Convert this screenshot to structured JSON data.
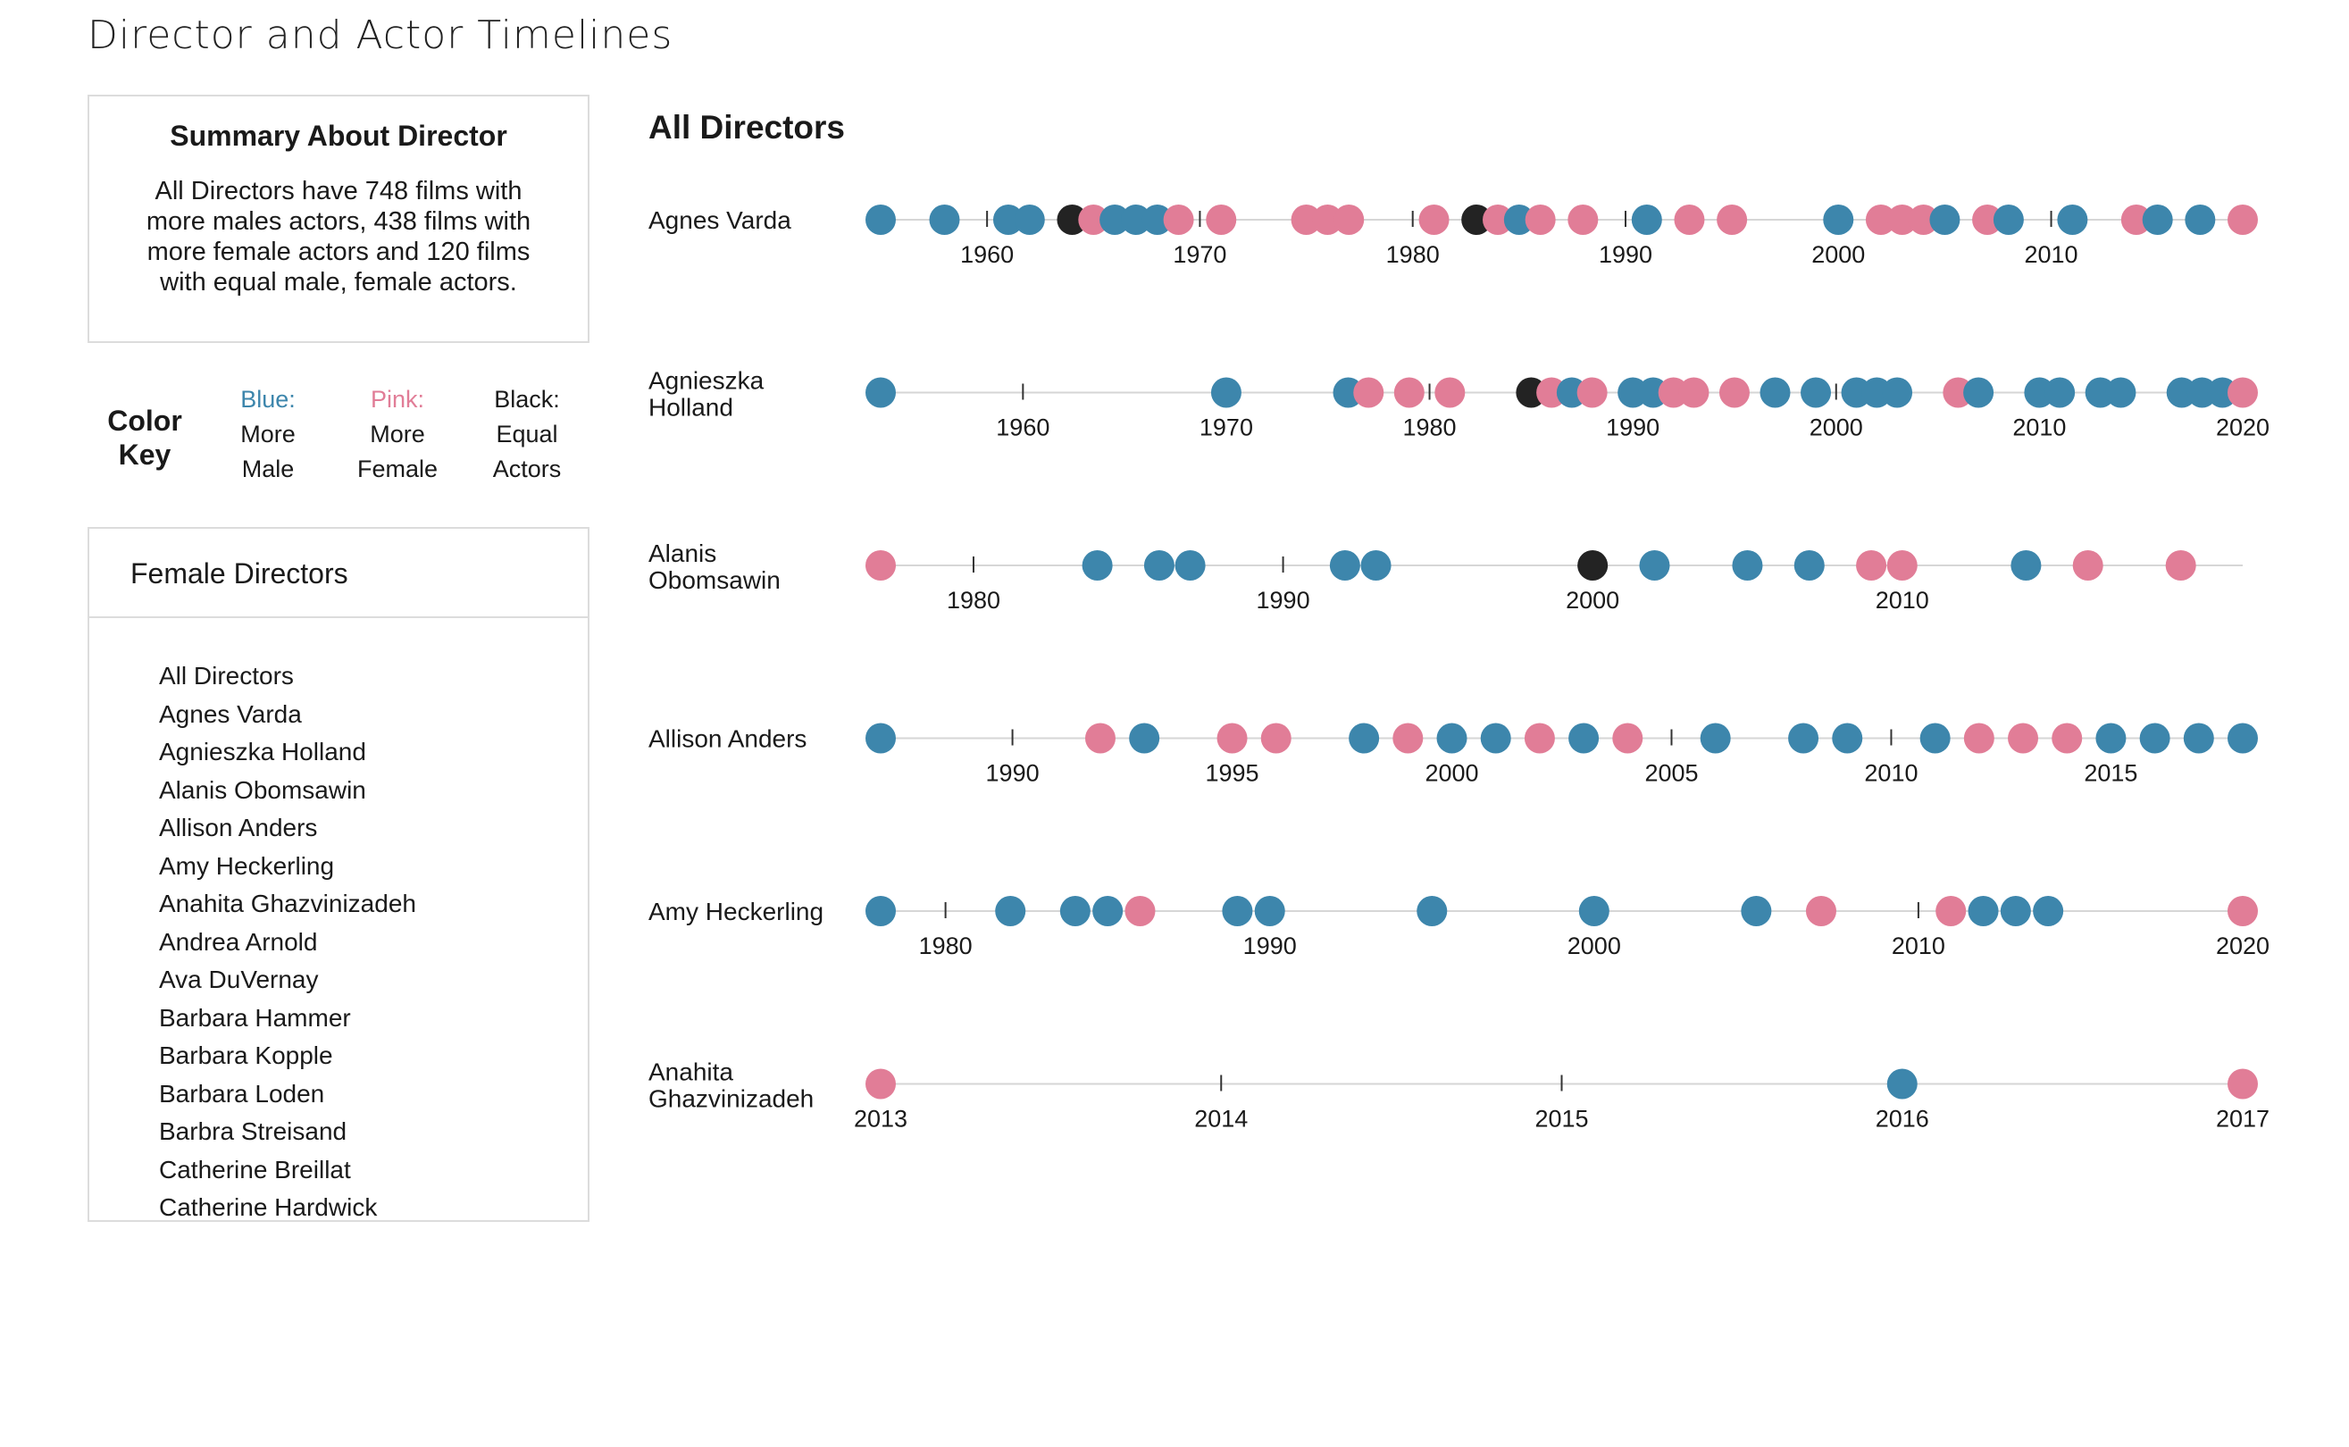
{
  "page_title": "Director and Actor Timelines",
  "summary": {
    "title": "Summary About Director",
    "text": "All Directors have 748 films with more males actors, 438 films with more female actors and 120 films with equal male, female actors."
  },
  "color_key": {
    "title": "Color Key",
    "blue": {
      "head": "Blue:",
      "line1": "More",
      "line2": "Male"
    },
    "pink": {
      "head": "Pink:",
      "line1": "More",
      "line2": "Female"
    },
    "black": {
      "head": "Black:",
      "line1": "Equal",
      "line2": "Actors"
    }
  },
  "colors": {
    "male": "#3d86ac",
    "female": "#e17d97",
    "equal": "#232323",
    "axis": "#d6d6d6",
    "tick": "#333333"
  },
  "director_list": {
    "header": "Female Directors",
    "items": [
      "All Directors",
      "Agnes Varda",
      "Agnieszka Holland",
      "Alanis Obomsawin",
      "Allison Anders",
      "Amy Heckerling",
      "Anahita Ghazvinizadeh",
      "Andrea Arnold",
      "Ava DuVernay",
      "Barbara Hammer",
      "Barbara Kopple",
      "Barbara Loden",
      "Barbra Streisand",
      "Catherine Breillat",
      "Catherine Hardwick"
    ]
  },
  "chart_title": "All Directors",
  "chart_data": {
    "type": "scatter",
    "title": "All Directors",
    "category_codes": {
      "M": "More Male",
      "F": "More Female",
      "E": "Equal Actors"
    },
    "timelines": [
      {
        "director": [
          "Agnes Varda"
        ],
        "domain": [
          1955,
          2019
        ],
        "ticks": [
          1960,
          1970,
          1980,
          1990,
          2000,
          2010
        ],
        "points": [
          [
            1955,
            "M"
          ],
          [
            1958,
            "M"
          ],
          [
            1961,
            "M"
          ],
          [
            1962,
            "M"
          ],
          [
            1964,
            "E"
          ],
          [
            1965,
            "F"
          ],
          [
            1966,
            "M"
          ],
          [
            1967,
            "M"
          ],
          [
            1968,
            "M"
          ],
          [
            1969,
            "F"
          ],
          [
            1971,
            "F"
          ],
          [
            1975,
            "F"
          ],
          [
            1976,
            "F"
          ],
          [
            1977,
            "F"
          ],
          [
            1981,
            "F"
          ],
          [
            1983,
            "E"
          ],
          [
            1984,
            "F"
          ],
          [
            1985,
            "M"
          ],
          [
            1986,
            "F"
          ],
          [
            1988,
            "F"
          ],
          [
            1991,
            "M"
          ],
          [
            1993,
            "F"
          ],
          [
            1995,
            "F"
          ],
          [
            2000,
            "M"
          ],
          [
            2002,
            "F"
          ],
          [
            2003,
            "F"
          ],
          [
            2004,
            "F"
          ],
          [
            2005,
            "M"
          ],
          [
            2007,
            "F"
          ],
          [
            2008,
            "M"
          ],
          [
            2011,
            "M"
          ],
          [
            2014,
            "F"
          ],
          [
            2015,
            "M"
          ],
          [
            2017,
            "M"
          ],
          [
            2019,
            "F"
          ]
        ]
      },
      {
        "director": [
          "Agnieszka",
          "Holland"
        ],
        "domain": [
          1953,
          2020
        ],
        "ticks": [
          1960,
          1970,
          1980,
          1990,
          2000,
          2010,
          2020
        ],
        "points": [
          [
            1953,
            "M"
          ],
          [
            1970,
            "M"
          ],
          [
            1976,
            "M"
          ],
          [
            1977,
            "F"
          ],
          [
            1979,
            "F"
          ],
          [
            1981,
            "F"
          ],
          [
            1985,
            "E"
          ],
          [
            1986,
            "F"
          ],
          [
            1987,
            "M"
          ],
          [
            1988,
            "F"
          ],
          [
            1990,
            "M"
          ],
          [
            1991,
            "M"
          ],
          [
            1992,
            "F"
          ],
          [
            1993,
            "F"
          ],
          [
            1995,
            "F"
          ],
          [
            1997,
            "M"
          ],
          [
            1999,
            "M"
          ],
          [
            2001,
            "M"
          ],
          [
            2002,
            "M"
          ],
          [
            2003,
            "M"
          ],
          [
            2006,
            "F"
          ],
          [
            2007,
            "M"
          ],
          [
            2010,
            "M"
          ],
          [
            2011,
            "M"
          ],
          [
            2013,
            "M"
          ],
          [
            2014,
            "M"
          ],
          [
            2017,
            "M"
          ],
          [
            2018,
            "M"
          ],
          [
            2019,
            "M"
          ],
          [
            2020,
            "F"
          ]
        ]
      },
      {
        "director": [
          "Alanis",
          "Obomsawin"
        ],
        "domain": [
          1977,
          2021
        ],
        "ticks": [
          1980,
          1990,
          2000,
          2010
        ],
        "points": [
          [
            1977,
            "F"
          ],
          [
            1984,
            "M"
          ],
          [
            1986,
            "M"
          ],
          [
            1987,
            "M"
          ],
          [
            1992,
            "M"
          ],
          [
            1993,
            "M"
          ],
          [
            2000,
            "E"
          ],
          [
            2002,
            "M"
          ],
          [
            2005,
            "M"
          ],
          [
            2007,
            "M"
          ],
          [
            2009,
            "F"
          ],
          [
            2010,
            "F"
          ],
          [
            2014,
            "M"
          ],
          [
            2016,
            "F"
          ],
          [
            2019,
            "F"
          ]
        ]
      },
      {
        "director": [
          "Allison Anders"
        ],
        "domain": [
          1987,
          2018
        ],
        "ticks": [
          1990,
          1995,
          2000,
          2005,
          2010,
          2015
        ],
        "points": [
          [
            1987,
            "M"
          ],
          [
            1992,
            "F"
          ],
          [
            1993,
            "M"
          ],
          [
            1995,
            "F"
          ],
          [
            1996,
            "F"
          ],
          [
            1998,
            "M"
          ],
          [
            1999,
            "F"
          ],
          [
            2000,
            "M"
          ],
          [
            2001,
            "M"
          ],
          [
            2002,
            "F"
          ],
          [
            2003,
            "M"
          ],
          [
            2004,
            "F"
          ],
          [
            2006,
            "M"
          ],
          [
            2008,
            "M"
          ],
          [
            2009,
            "M"
          ],
          [
            2011,
            "M"
          ],
          [
            2012,
            "F"
          ],
          [
            2013,
            "F"
          ],
          [
            2014,
            "F"
          ],
          [
            2015,
            "M"
          ],
          [
            2016,
            "M"
          ],
          [
            2017,
            "M"
          ],
          [
            2018,
            "M"
          ]
        ]
      },
      {
        "director": [
          "Amy Heckerling"
        ],
        "domain": [
          1978,
          2020
        ],
        "ticks": [
          1980,
          1990,
          2000,
          2010,
          2020
        ],
        "points": [
          [
            1978,
            "M"
          ],
          [
            1982,
            "M"
          ],
          [
            1984,
            "M"
          ],
          [
            1985,
            "M"
          ],
          [
            1986,
            "F"
          ],
          [
            1989,
            "M"
          ],
          [
            1990,
            "M"
          ],
          [
            1995,
            "M"
          ],
          [
            2000,
            "M"
          ],
          [
            2005,
            "M"
          ],
          [
            2007,
            "F"
          ],
          [
            2011,
            "F"
          ],
          [
            2012,
            "M"
          ],
          [
            2013,
            "M"
          ],
          [
            2014,
            "M"
          ],
          [
            2020,
            "F"
          ]
        ]
      },
      {
        "director": [
          "Anahita",
          "Ghazvinizadeh"
        ],
        "domain": [
          2013,
          2017
        ],
        "ticks": [
          2013,
          2014,
          2015,
          2016,
          2017
        ],
        "points": [
          [
            2013,
            "F"
          ],
          [
            2016,
            "M"
          ],
          [
            2017,
            "F"
          ]
        ]
      }
    ]
  }
}
